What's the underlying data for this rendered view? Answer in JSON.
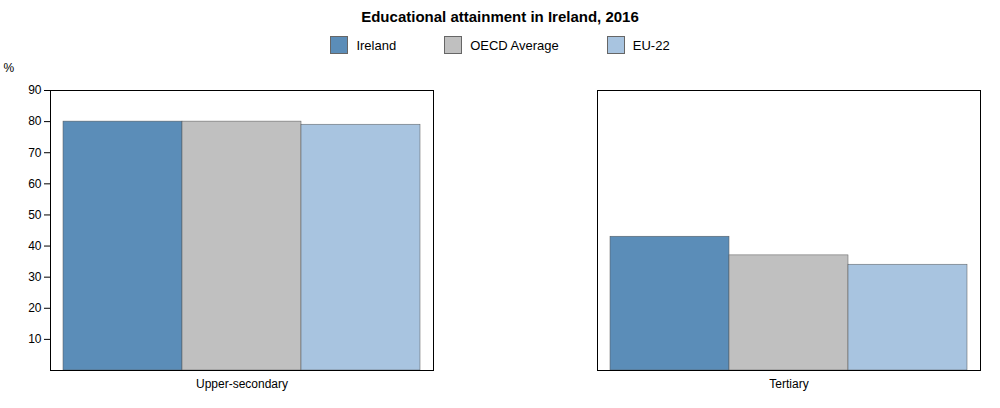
{
  "chart_data": {
    "type": "bar",
    "title": "Educational attainment in Ireland, 2016",
    "categories": [
      "Upper-secondary",
      "Tertiary"
    ],
    "series": [
      {
        "name": "Ireland",
        "color": "#5B8DB8",
        "values": [
          80,
          43
        ]
      },
      {
        "name": "OECD Average",
        "color": "#C0C0C0",
        "values": [
          80,
          37
        ]
      },
      {
        "name": "EU-22",
        "color": "#A8C4E0",
        "values": [
          79,
          34
        ]
      }
    ],
    "ylabel": "%",
    "ylim": [
      0,
      90
    ],
    "yticks": [
      10,
      20,
      30,
      40,
      50,
      60,
      70,
      80,
      90
    ],
    "grid": false,
    "legend": "top"
  }
}
